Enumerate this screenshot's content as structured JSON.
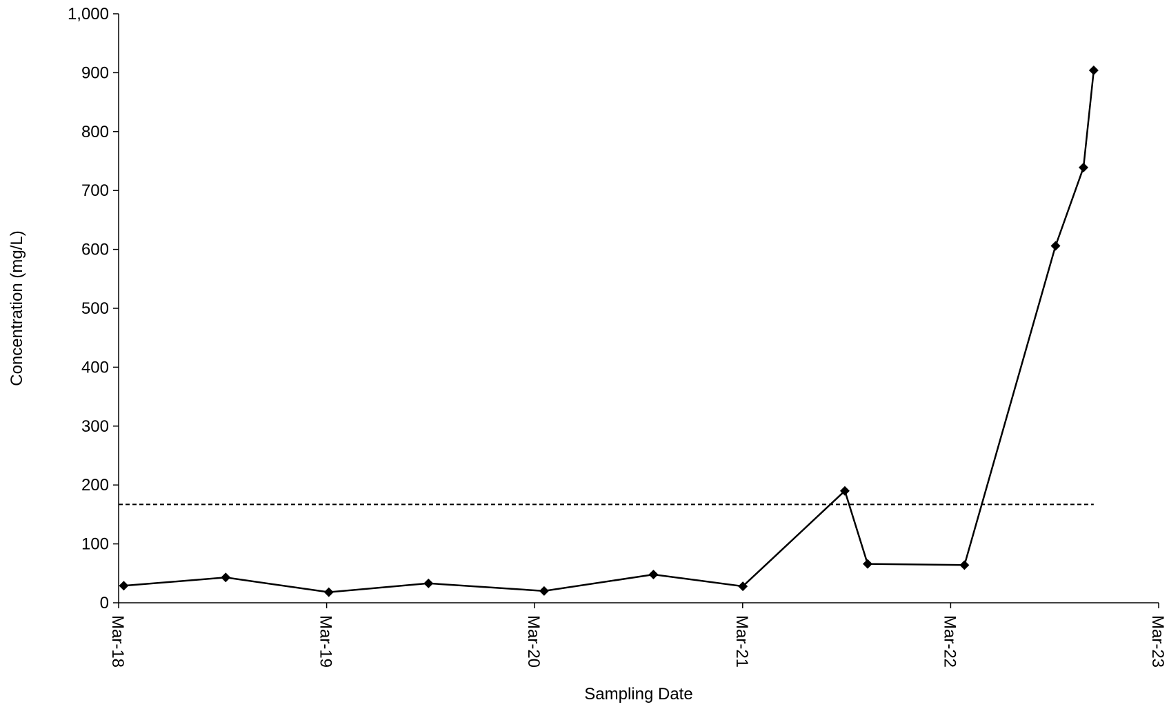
{
  "chart_data": {
    "type": "line",
    "title": "",
    "xlabel": "Sampling Date",
    "ylabel": "Concentration (mg/L)",
    "x_ticks": [
      "Mar-18",
      "Mar-19",
      "Mar-20",
      "Mar-21",
      "Mar-22",
      "Mar-23"
    ],
    "xlim": [
      "2018-03-01",
      "2023-03-01"
    ],
    "y_ticks": [
      "0",
      "100",
      "200",
      "300",
      "400",
      "500",
      "600",
      "700",
      "800",
      "900",
      "1,000"
    ],
    "ylim": [
      0,
      1000
    ],
    "grid": false,
    "legend": "none",
    "series": [
      {
        "color": "#000000",
        "marker": "diamond",
        "points": [
          {
            "x": "2018-03-10",
            "y": 29
          },
          {
            "x": "2018-09-05",
            "y": 43
          },
          {
            "x": "2019-03-05",
            "y": 18
          },
          {
            "x": "2019-08-27",
            "y": 33
          },
          {
            "x": "2020-03-17",
            "y": 20
          },
          {
            "x": "2020-09-25",
            "y": 48
          },
          {
            "x": "2021-03-01",
            "y": 28
          },
          {
            "x": "2021-08-27",
            "y": 190
          },
          {
            "x": "2021-10-06",
            "y": 66
          },
          {
            "x": "2022-03-25",
            "y": 64
          },
          {
            "x": "2022-09-01",
            "y": 606
          },
          {
            "x": "2022-10-20",
            "y": 739
          },
          {
            "x": "2022-11-07",
            "y": 904
          }
        ]
      }
    ],
    "reference_line": {
      "y": 167,
      "style": "dashed",
      "color": "#000000",
      "x_start": "2018-03-01",
      "x_end": "2022-11-07"
    }
  }
}
